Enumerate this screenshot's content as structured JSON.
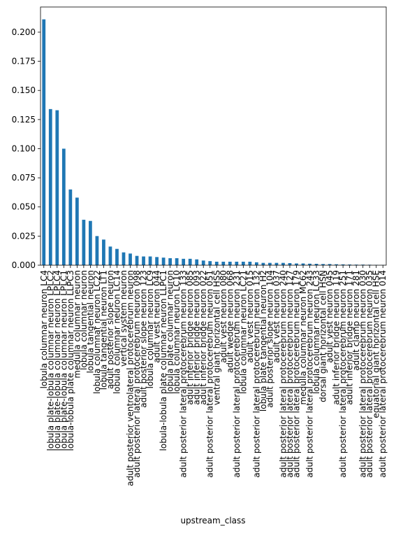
{
  "chart_data": {
    "type": "bar",
    "x_label": "upstream_class",
    "color": "#1f77b4",
    "categories": [
      "lobula columnar neuron LC4",
      "lobula plate-lobula columnar neuron LPLC2",
      "lobula plate-lobula columnar neuron LPLC4",
      "lobula plate-lobula columnar neuron LPLC1",
      "lobula-lobula plate columnar neuron LLPC3",
      "medulla columnar neuron",
      "lobula columnar neuron",
      "lobula tangential neuron",
      "lobula columnar neuron LC22",
      "lobula tangential neuron LT1",
      "adult posterior slope neuron",
      "lobula columnar neuron LC14",
      "vertical system neuron",
      "adult posterior ventrolateral protocerebrum neuron",
      "adult posterior lateral protocerebrum neuron 098",
      "adult posterior slope neuron 123",
      "lobula columnar neuron LC9",
      "adult vest neuron 044",
      "lobula-lobula plate columnar neuron LLPC1",
      "lobula plate columnar neuron",
      "lobula columnar neuron LC10",
      "adult posterior lateral protocerebrum neuron 133",
      "adult inferior bridge neuron 085",
      "adult inferior bridge neuron 093",
      "adult inferior bridge neuron 022",
      "adult posterior lateral protocerebrum neuron 051",
      "ventral giant horizontal cell HSS",
      "adult vest neuron 080",
      "adult wedge neuron 068",
      "adult posterior lateral protocerebrum neuron 231",
      "lobula columnar neuron LC21",
      "adult vest neuron 015",
      "adult posterior lateral protocerebrum neuron 132",
      "lobula plate tangential neuron H2",
      "adult posterior slope neuron 104",
      "adult vest neuron 037",
      "adult posterior lateral protocerebrum neuron 240",
      "adult posterior lateral protocerebrum neuron 127",
      "adult posterior lateral protocerebrum neuron 179",
      "medulla columnar neuron MC62",
      "adult posterior lateral protocerebrum neuron 243",
      "lobula columnar neuron LC33",
      "dorsal giant horizontal cell HSN",
      "adult vest neuron 045",
      "adult inferior bridge neuron 119",
      "adult posterior lateral protocerebrum neuron 251",
      "adult inferior bridge neuron 171",
      "adult clamp neuron 281",
      "adult posterior lateral protocerebrum neuron 030",
      "adult posterior lateral protocerebrum neuron 035",
      "equatorial giant horizontal cell HSE",
      "adult posterior lateral protocerebrum neuron 014"
    ],
    "values": [
      0.211,
      0.134,
      0.133,
      0.1,
      0.065,
      0.058,
      0.039,
      0.038,
      0.025,
      0.022,
      0.016,
      0.014,
      0.011,
      0.01,
      0.008,
      0.0075,
      0.0075,
      0.007,
      0.0065,
      0.006,
      0.006,
      0.0055,
      0.0055,
      0.005,
      0.004,
      0.0035,
      0.003,
      0.003,
      0.003,
      0.003,
      0.003,
      0.003,
      0.0025,
      0.002,
      0.002,
      0.002,
      0.002,
      0.0018,
      0.0015,
      0.0015,
      0.0013,
      0.0012,
      0.001,
      0.001,
      0.0008,
      0.0007,
      0.0006,
      0.0005,
      0.0005,
      0.0004,
      0.0003,
      0.0002
    ],
    "ylim": [
      0,
      0.2216
    ],
    "yticks": [
      {
        "value": 0,
        "label": "0.000"
      },
      {
        "value": 0.025,
        "label": "0.025"
      },
      {
        "value": 0.05,
        "label": "0.050"
      },
      {
        "value": 0.075,
        "label": "0.075"
      },
      {
        "value": 0.1,
        "label": "0.100"
      },
      {
        "value": 0.125,
        "label": "0.125"
      },
      {
        "value": 0.15,
        "label": "0.150"
      },
      {
        "value": 0.175,
        "label": "0.175"
      },
      {
        "value": 0.2,
        "label": "0.200"
      }
    ]
  }
}
